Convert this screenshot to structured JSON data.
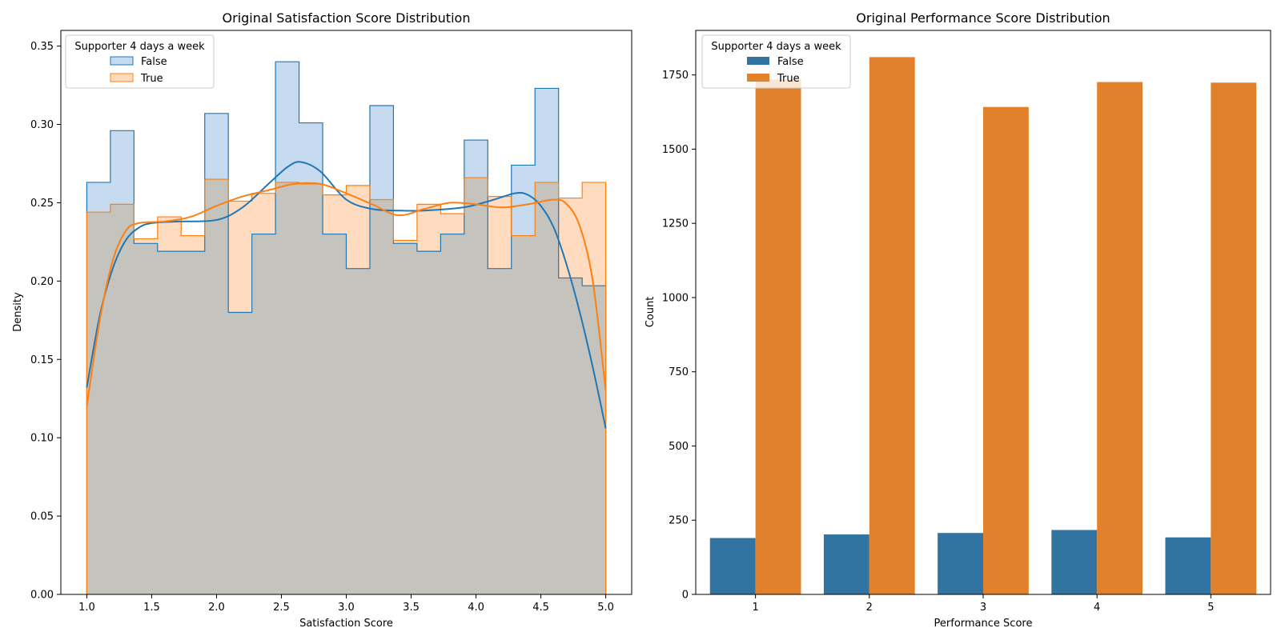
{
  "chart_data": [
    {
      "type": "histogram-step-kde",
      "title": "Original Satisfaction Score Distribution",
      "xlabel": "Satisfaction Score",
      "ylabel": "Density",
      "xlim": [
        0.8,
        5.2
      ],
      "ylim": [
        0,
        0.36
      ],
      "xticks": [
        "1.0",
        "1.5",
        "2.0",
        "2.5",
        "3.0",
        "3.5",
        "4.0",
        "4.5",
        "5.0"
      ],
      "yticks": [
        "0.00",
        "0.05",
        "0.10",
        "0.15",
        "0.20",
        "0.25",
        "0.30",
        "0.35"
      ],
      "grid": false,
      "legend": {
        "title": "Supporter 4 days a week",
        "placement": "upper-left",
        "entries": [
          "False",
          "True"
        ]
      },
      "bin_edges": [
        1.0,
        1.1818,
        1.3636,
        1.5455,
        1.7273,
        1.9091,
        2.0909,
        2.2727,
        2.4545,
        2.6364,
        2.8182,
        3.0,
        3.1818,
        3.3636,
        3.5455,
        3.7273,
        3.9091,
        4.0909,
        4.2727,
        4.4545,
        4.6364,
        4.8182,
        5.0
      ],
      "series": [
        {
          "name": "False",
          "color": "#1f77b4",
          "fill": "#c6dbef",
          "values": [
            0.263,
            0.296,
            0.224,
            0.219,
            0.219,
            0.307,
            0.18,
            0.23,
            0.34,
            0.301,
            0.23,
            0.208,
            0.312,
            0.224,
            0.219,
            0.23,
            0.29,
            0.208,
            0.274,
            0.323,
            0.202,
            0.197
          ],
          "kde_x": [
            1.0,
            1.1,
            1.2,
            1.3,
            1.4,
            1.5,
            1.7,
            2.0,
            2.2,
            2.4,
            2.55,
            2.65,
            2.8,
            3.0,
            3.2,
            3.4,
            3.6,
            3.9,
            4.1,
            4.3,
            4.4,
            4.5,
            4.6,
            4.7,
            4.8,
            4.9,
            5.0
          ],
          "kde_y": [
            0.132,
            0.178,
            0.208,
            0.226,
            0.234,
            0.237,
            0.238,
            0.239,
            0.247,
            0.262,
            0.273,
            0.276,
            0.27,
            0.252,
            0.246,
            0.245,
            0.245,
            0.247,
            0.251,
            0.256,
            0.255,
            0.248,
            0.234,
            0.21,
            0.18,
            0.145,
            0.106
          ]
        },
        {
          "name": "True",
          "color": "#ff7f0e",
          "fill": "#ffdcbf",
          "values": [
            0.244,
            0.249,
            0.227,
            0.241,
            0.229,
            0.265,
            0.251,
            0.256,
            0.263,
            0.262,
            0.255,
            0.261,
            0.252,
            0.226,
            0.249,
            0.243,
            0.266,
            0.254,
            0.229,
            0.263,
            0.253,
            0.263
          ],
          "kde_x": [
            1.0,
            1.1,
            1.2,
            1.3,
            1.4,
            1.6,
            1.8,
            2.0,
            2.2,
            2.4,
            2.6,
            2.8,
            3.0,
            3.2,
            3.4,
            3.6,
            3.8,
            4.0,
            4.2,
            4.4,
            4.6,
            4.7,
            4.8,
            4.9,
            5.0
          ],
          "kde_y": [
            0.12,
            0.175,
            0.213,
            0.232,
            0.237,
            0.238,
            0.241,
            0.248,
            0.254,
            0.258,
            0.262,
            0.262,
            0.256,
            0.249,
            0.242,
            0.246,
            0.25,
            0.249,
            0.247,
            0.249,
            0.252,
            0.249,
            0.235,
            0.2,
            0.13
          ]
        }
      ],
      "overlap_fill": "#c5c3be"
    },
    {
      "type": "bar",
      "title": "Original Performance Score Distribution",
      "xlabel": "Performance Score",
      "ylabel": "Count",
      "ylim": [
        0,
        1900
      ],
      "categories": [
        "1",
        "2",
        "3",
        "4",
        "5"
      ],
      "yticks": [
        "0",
        "250",
        "500",
        "750",
        "1000",
        "1250",
        "1500",
        "1750"
      ],
      "grid": false,
      "legend": {
        "title": "Supporter 4 days a week",
        "placement": "upper-left",
        "entries": [
          "False",
          "True"
        ]
      },
      "series": [
        {
          "name": "False",
          "color": "#3274a1",
          "values": [
            190,
            202,
            207,
            217,
            192
          ]
        },
        {
          "name": "True",
          "color": "#e1812c",
          "values": [
            1735,
            1810,
            1642,
            1726,
            1724
          ]
        }
      ]
    }
  ]
}
